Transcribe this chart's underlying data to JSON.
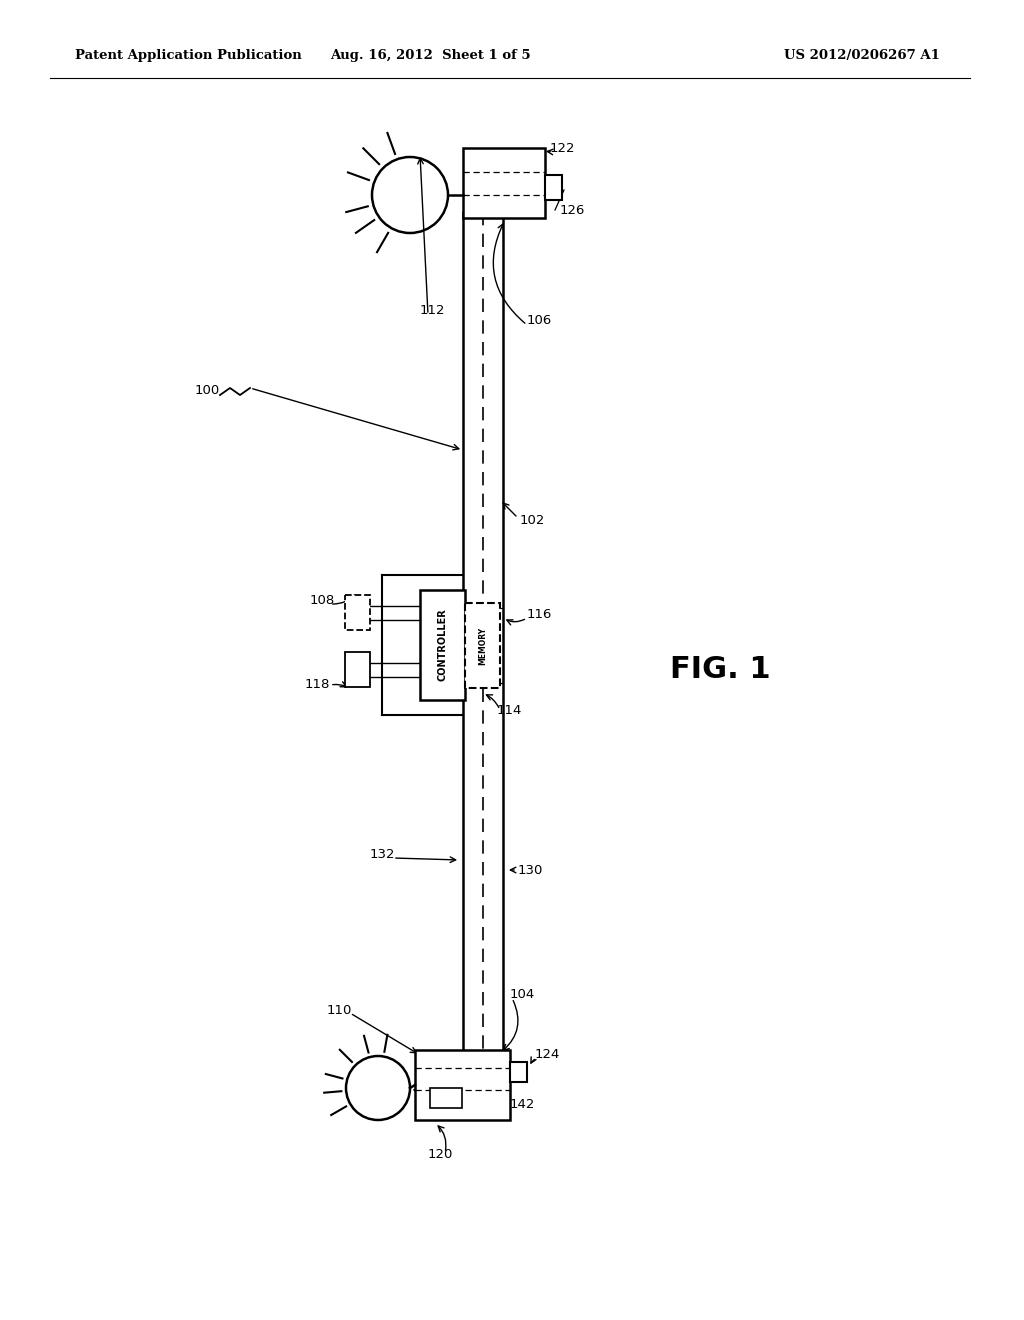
{
  "bg_color": "#ffffff",
  "line_color": "#000000",
  "header_left": "Patent Application Publication",
  "header_mid": "Aug. 16, 2012  Sheet 1 of 5",
  "header_right": "US 2012/0206267 A1",
  "fig_label": "FIG. 1",
  "figsize": [
    10.24,
    13.2
  ],
  "dpi": 100
}
